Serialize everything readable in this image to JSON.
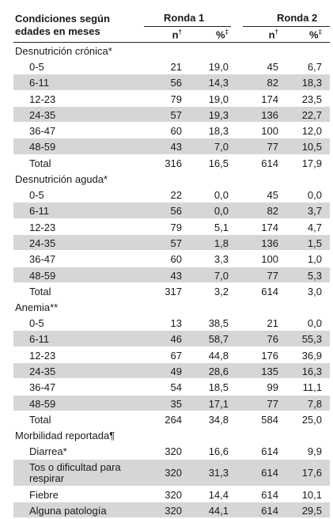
{
  "header": {
    "condition_label": "Condiciones según edades en meses",
    "round1": "Ronda 1",
    "round2": "Ronda 2",
    "n_label": "n",
    "n_mark": "†",
    "pct_label": "%",
    "pct_mark": "‡"
  },
  "sections": [
    {
      "title": "Desnutrición crónica*",
      "rows": [
        {
          "label": "0-5",
          "n1": "21",
          "p1": "19,0",
          "n2": "45",
          "p2": "6,7"
        },
        {
          "label": "6-11",
          "n1": "56",
          "p1": "14,3",
          "n2": "82",
          "p2": "18,3"
        },
        {
          "label": "12-23",
          "n1": "79",
          "p1": "19,0",
          "n2": "174",
          "p2": "23,5"
        },
        {
          "label": "24-35",
          "n1": "57",
          "p1": "19,3",
          "n2": "136",
          "p2": "22,7"
        },
        {
          "label": "36-47",
          "n1": "60",
          "p1": "18,3",
          "n2": "100",
          "p2": "12,0"
        },
        {
          "label": "48-59",
          "n1": "43",
          "p1": "7,0",
          "n2": "77",
          "p2": "10,5"
        },
        {
          "label": "Total",
          "n1": "316",
          "p1": "16,5",
          "n2": "614",
          "p2": "17,9"
        }
      ]
    },
    {
      "title": "Desnutrición aguda*",
      "rows": [
        {
          "label": "0-5",
          "n1": "22",
          "p1": "0,0",
          "n2": "45",
          "p2": "0,0"
        },
        {
          "label": "6-11",
          "n1": "56",
          "p1": "0,0",
          "n2": "82",
          "p2": "3,7"
        },
        {
          "label": "12-23",
          "n1": "79",
          "p1": "5,1",
          "n2": "174",
          "p2": "4,7"
        },
        {
          "label": "24-35",
          "n1": "57",
          "p1": "1,8",
          "n2": "136",
          "p2": "1,5"
        },
        {
          "label": "36-47",
          "n1": "60",
          "p1": "3,3",
          "n2": "100",
          "p2": "1,0"
        },
        {
          "label": "48-59",
          "n1": "43",
          "p1": "7,0",
          "n2": "77",
          "p2": "5,3"
        },
        {
          "label": "Total",
          "n1": "317",
          "p1": "3,2",
          "n2": "614",
          "p2": "3,0"
        }
      ]
    },
    {
      "title": "Anemia**",
      "rows": [
        {
          "label": "0-5",
          "n1": "13",
          "p1": "38,5",
          "n2": "21",
          "p2": "0,0"
        },
        {
          "label": "6-11",
          "n1": "46",
          "p1": "58,7",
          "n2": "76",
          "p2": "55,3"
        },
        {
          "label": "12-23",
          "n1": "67",
          "p1": "44,8",
          "n2": "176",
          "p2": "36,9"
        },
        {
          "label": "24-35",
          "n1": "49",
          "p1": "28,6",
          "n2": "135",
          "p2": "16,3"
        },
        {
          "label": "36-47",
          "n1": "54",
          "p1": "18,5",
          "n2": "99",
          "p2": "11,1"
        },
        {
          "label": "48-59",
          "n1": "35",
          "p1": "17,1",
          "n2": "77",
          "p2": "7,8"
        },
        {
          "label": "Total",
          "n1": "264",
          "p1": "34,8",
          "n2": "584",
          "p2": "25,0"
        }
      ]
    },
    {
      "title": "Morbilidad reportada¶",
      "rows": [
        {
          "label": "Diarrea*",
          "n1": "320",
          "p1": "16,6",
          "n2": "614",
          "p2": "9,9"
        },
        {
          "label": "Tos o dificultad para respirar",
          "n1": "320",
          "p1": "31,3",
          "n2": "614",
          "p2": "17,6"
        },
        {
          "label": "Fiebre",
          "n1": "320",
          "p1": "14,4",
          "n2": "614",
          "p2": "10,1"
        },
        {
          "label": "Alguna patología",
          "n1": "320",
          "p1": "44,1",
          "n2": "614",
          "p2": "29,5"
        }
      ]
    }
  ]
}
